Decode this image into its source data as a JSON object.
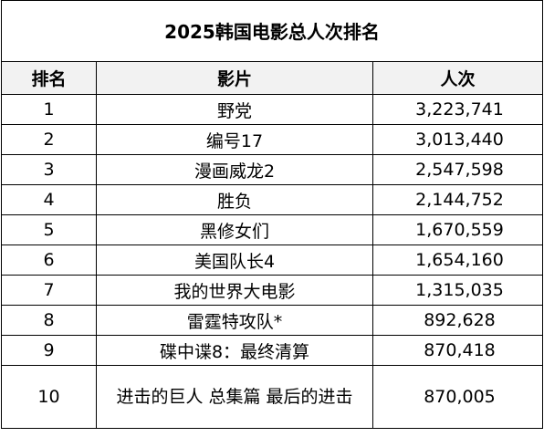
{
  "table": {
    "title": "2025韩国电影总人次排名",
    "columns": [
      "排名",
      "影片",
      "人次"
    ],
    "rows": [
      {
        "rank": "1",
        "movie": "野党",
        "admissions": "3,223,741"
      },
      {
        "rank": "2",
        "movie": "编号17",
        "admissions": "3,013,440"
      },
      {
        "rank": "3",
        "movie": "漫画威龙2",
        "admissions": "2,547,598"
      },
      {
        "rank": "4",
        "movie": "胜负",
        "admissions": "2,144,752"
      },
      {
        "rank": "5",
        "movie": "黑修女们",
        "admissions": "1,670,559"
      },
      {
        "rank": "6",
        "movie": "美国队长4",
        "admissions": "1,654,160"
      },
      {
        "rank": "7",
        "movie": "我的世界大电影",
        "admissions": "1,315,035"
      },
      {
        "rank": "8",
        "movie": "雷霆特攻队*",
        "admissions": "892,628"
      },
      {
        "rank": "9",
        "movie": "碟中谍8：最终清算",
        "admissions": "870,418"
      },
      {
        "rank": "10",
        "movie": "进击的巨人 总集篇 最后的进击",
        "admissions": "870,005"
      }
    ]
  }
}
